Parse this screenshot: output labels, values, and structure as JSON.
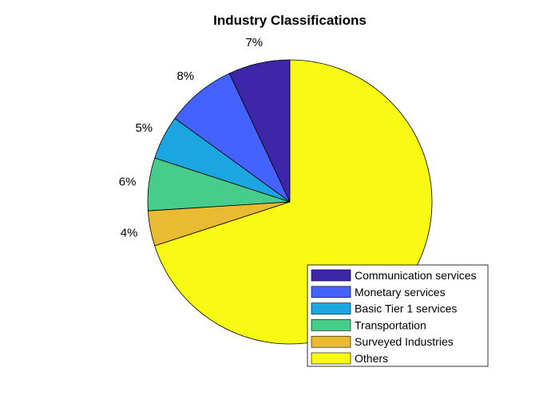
{
  "chart_data": {
    "type": "pie",
    "title": "Industry Classifications",
    "slices": [
      {
        "label": "Communication services",
        "percent_label": "7%",
        "value": 7,
        "color": "#3e26a8"
      },
      {
        "label": "Monetary services",
        "percent_label": "8%",
        "value": 8,
        "color": "#4462ff"
      },
      {
        "label": "Basic Tier 1 services",
        "percent_label": "5%",
        "value": 5,
        "color": "#1ba6e1"
      },
      {
        "label": "Transportation",
        "percent_label": "6%",
        "value": 6,
        "color": "#48cc8a"
      },
      {
        "label": "Surveyed Industries",
        "percent_label": "4%",
        "value": 4,
        "color": "#e9bb33"
      },
      {
        "label": "Others",
        "percent_label": "",
        "value": 70,
        "color": "#f9fa14"
      }
    ],
    "start_angle_deg": 90,
    "direction": "counterclockwise",
    "legend_position": "bottom-right"
  }
}
